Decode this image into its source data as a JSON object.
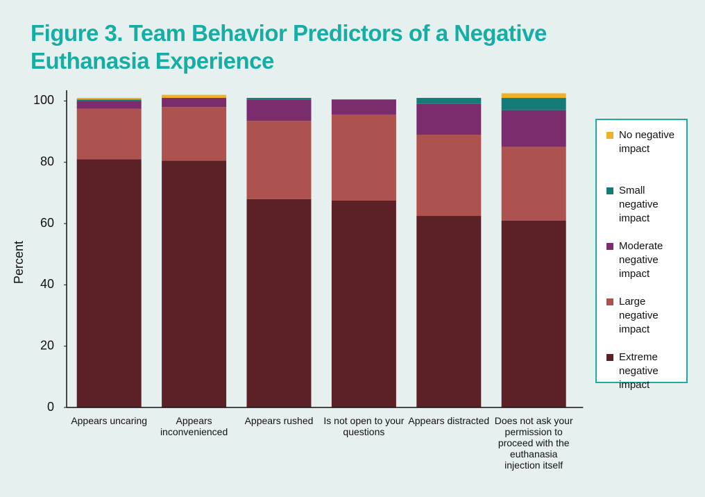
{
  "chart_data": {
    "type": "stacked_bar",
    "title": "Figure 3. Team Behavior Predictors of a Negative Euthanasia Experience",
    "y_label": "Percent",
    "categories": [
      "Appears uncaring",
      "Appears inconvenienced",
      "Appears rushed",
      "Is not open to your questions",
      "Appears distracted",
      "Does not ask your permission to proceed with the euthanasia injection itself"
    ],
    "series": [
      {
        "name": "Extreme negative impact",
        "color": "#5c2126",
        "values": [
          81,
          80.5,
          68,
          67.5,
          62.5,
          61
        ]
      },
      {
        "name": "Large negative impact",
        "color": "#ad524f",
        "values": [
          16.5,
          17.5,
          25.5,
          28,
          26.5,
          24
        ]
      },
      {
        "name": "Moderate negative impact",
        "color": "#7a2c6d",
        "values": [
          2.5,
          3,
          7,
          5,
          10,
          12
        ]
      },
      {
        "name": "Small negative impact",
        "color": "#147b77",
        "values": [
          0.5,
          0,
          0.5,
          0,
          2,
          4
        ]
      },
      {
        "name": "No negative impact",
        "color": "#efb02a",
        "values": [
          0.5,
          1,
          0,
          0,
          0,
          1.5
        ]
      }
    ],
    "ylim": [
      0,
      103.5
    ],
    "yticks": [
      0,
      20,
      40,
      60,
      80,
      100
    ]
  }
}
